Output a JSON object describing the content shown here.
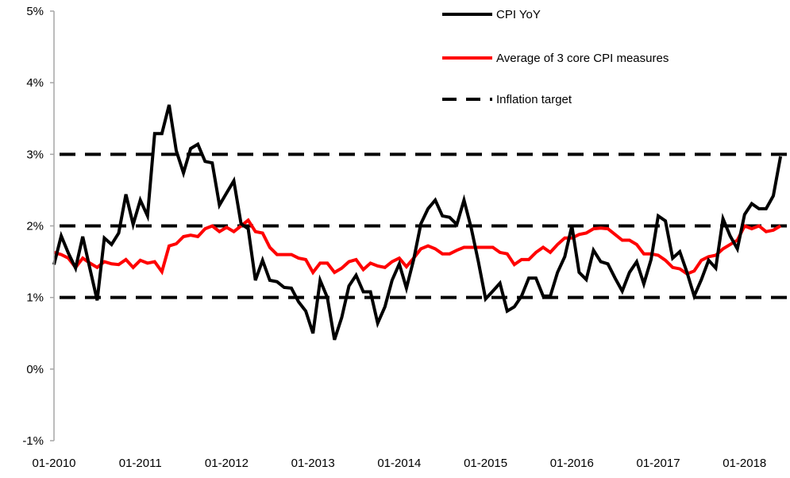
{
  "chart_data": {
    "type": "line",
    "title": "",
    "xlabel": "",
    "ylabel": "",
    "x_start": "01-2010",
    "x_frequency": "monthly",
    "x_tick_labels": [
      "01-2010",
      "01-2011",
      "01-2012",
      "01-2013",
      "01-2014",
      "01-2015",
      "01-2016",
      "01-2017",
      "01-2018"
    ],
    "y_tick_labels": [
      "-1%",
      "0%",
      "1%",
      "2%",
      "3%",
      "4%",
      "5%"
    ],
    "ylim": [
      -1,
      5
    ],
    "y_unit": "%",
    "grid": false,
    "legend_position": "top-right",
    "series": [
      {
        "name": "CPI YoY",
        "color": "#000000",
        "style": "solid",
        "values": [
          1.46,
          1.86,
          1.62,
          1.41,
          1.85,
          1.4,
          0.96,
          1.83,
          1.74,
          1.9,
          2.44,
          2.02,
          2.36,
          2.14,
          3.29,
          3.29,
          3.69,
          3.05,
          2.74,
          3.08,
          3.14,
          2.9,
          2.88,
          2.29,
          2.46,
          2.63,
          2.03,
          1.96,
          1.24,
          1.52,
          1.24,
          1.22,
          1.14,
          1.13,
          0.94,
          0.81,
          0.5,
          1.24,
          1.0,
          0.41,
          0.72,
          1.16,
          1.31,
          1.08,
          1.08,
          0.64,
          0.87,
          1.24,
          1.47,
          1.13,
          1.53,
          2.03,
          2.24,
          2.36,
          2.14,
          2.12,
          2.02,
          2.36,
          1.97,
          1.5,
          0.98,
          1.09,
          1.2,
          0.81,
          0.87,
          1.02,
          1.27,
          1.27,
          1.02,
          1.02,
          1.35,
          1.57,
          2.0,
          1.35,
          1.25,
          1.66,
          1.5,
          1.47,
          1.27,
          1.09,
          1.35,
          1.5,
          1.19,
          1.53,
          2.14,
          2.07,
          1.55,
          1.64,
          1.35,
          1.02,
          1.25,
          1.52,
          1.41,
          2.1,
          1.86,
          1.68,
          2.16,
          2.31,
          2.24,
          2.24,
          2.42,
          2.97
        ]
      },
      {
        "name": "Average of 3 core CPI measures",
        "color": "#ff0000",
        "style": "solid",
        "values": [
          1.63,
          1.6,
          1.55,
          1.42,
          1.55,
          1.48,
          1.42,
          1.5,
          1.47,
          1.46,
          1.53,
          1.42,
          1.52,
          1.48,
          1.5,
          1.36,
          1.72,
          1.75,
          1.85,
          1.87,
          1.85,
          1.96,
          2.0,
          1.92,
          1.98,
          1.92,
          2.0,
          2.08,
          1.92,
          1.9,
          1.7,
          1.6,
          1.6,
          1.6,
          1.55,
          1.53,
          1.35,
          1.48,
          1.48,
          1.35,
          1.41,
          1.5,
          1.53,
          1.39,
          1.48,
          1.44,
          1.42,
          1.5,
          1.55,
          1.43,
          1.55,
          1.68,
          1.72,
          1.68,
          1.61,
          1.61,
          1.66,
          1.7,
          1.7,
          1.7,
          1.7,
          1.7,
          1.63,
          1.61,
          1.46,
          1.53,
          1.53,
          1.63,
          1.7,
          1.63,
          1.74,
          1.83,
          1.83,
          1.88,
          1.9,
          1.96,
          1.97,
          1.96,
          1.88,
          1.8,
          1.8,
          1.74,
          1.61,
          1.61,
          1.59,
          1.52,
          1.42,
          1.4,
          1.33,
          1.37,
          1.52,
          1.57,
          1.59,
          1.68,
          1.74,
          1.8,
          2.0,
          1.96,
          2.0,
          1.92,
          1.94,
          2.0
        ]
      },
      {
        "name": "Inflation target",
        "color": "#000000",
        "style": "dashed",
        "horizontal_lines": [
          1,
          2,
          3
        ]
      }
    ]
  }
}
